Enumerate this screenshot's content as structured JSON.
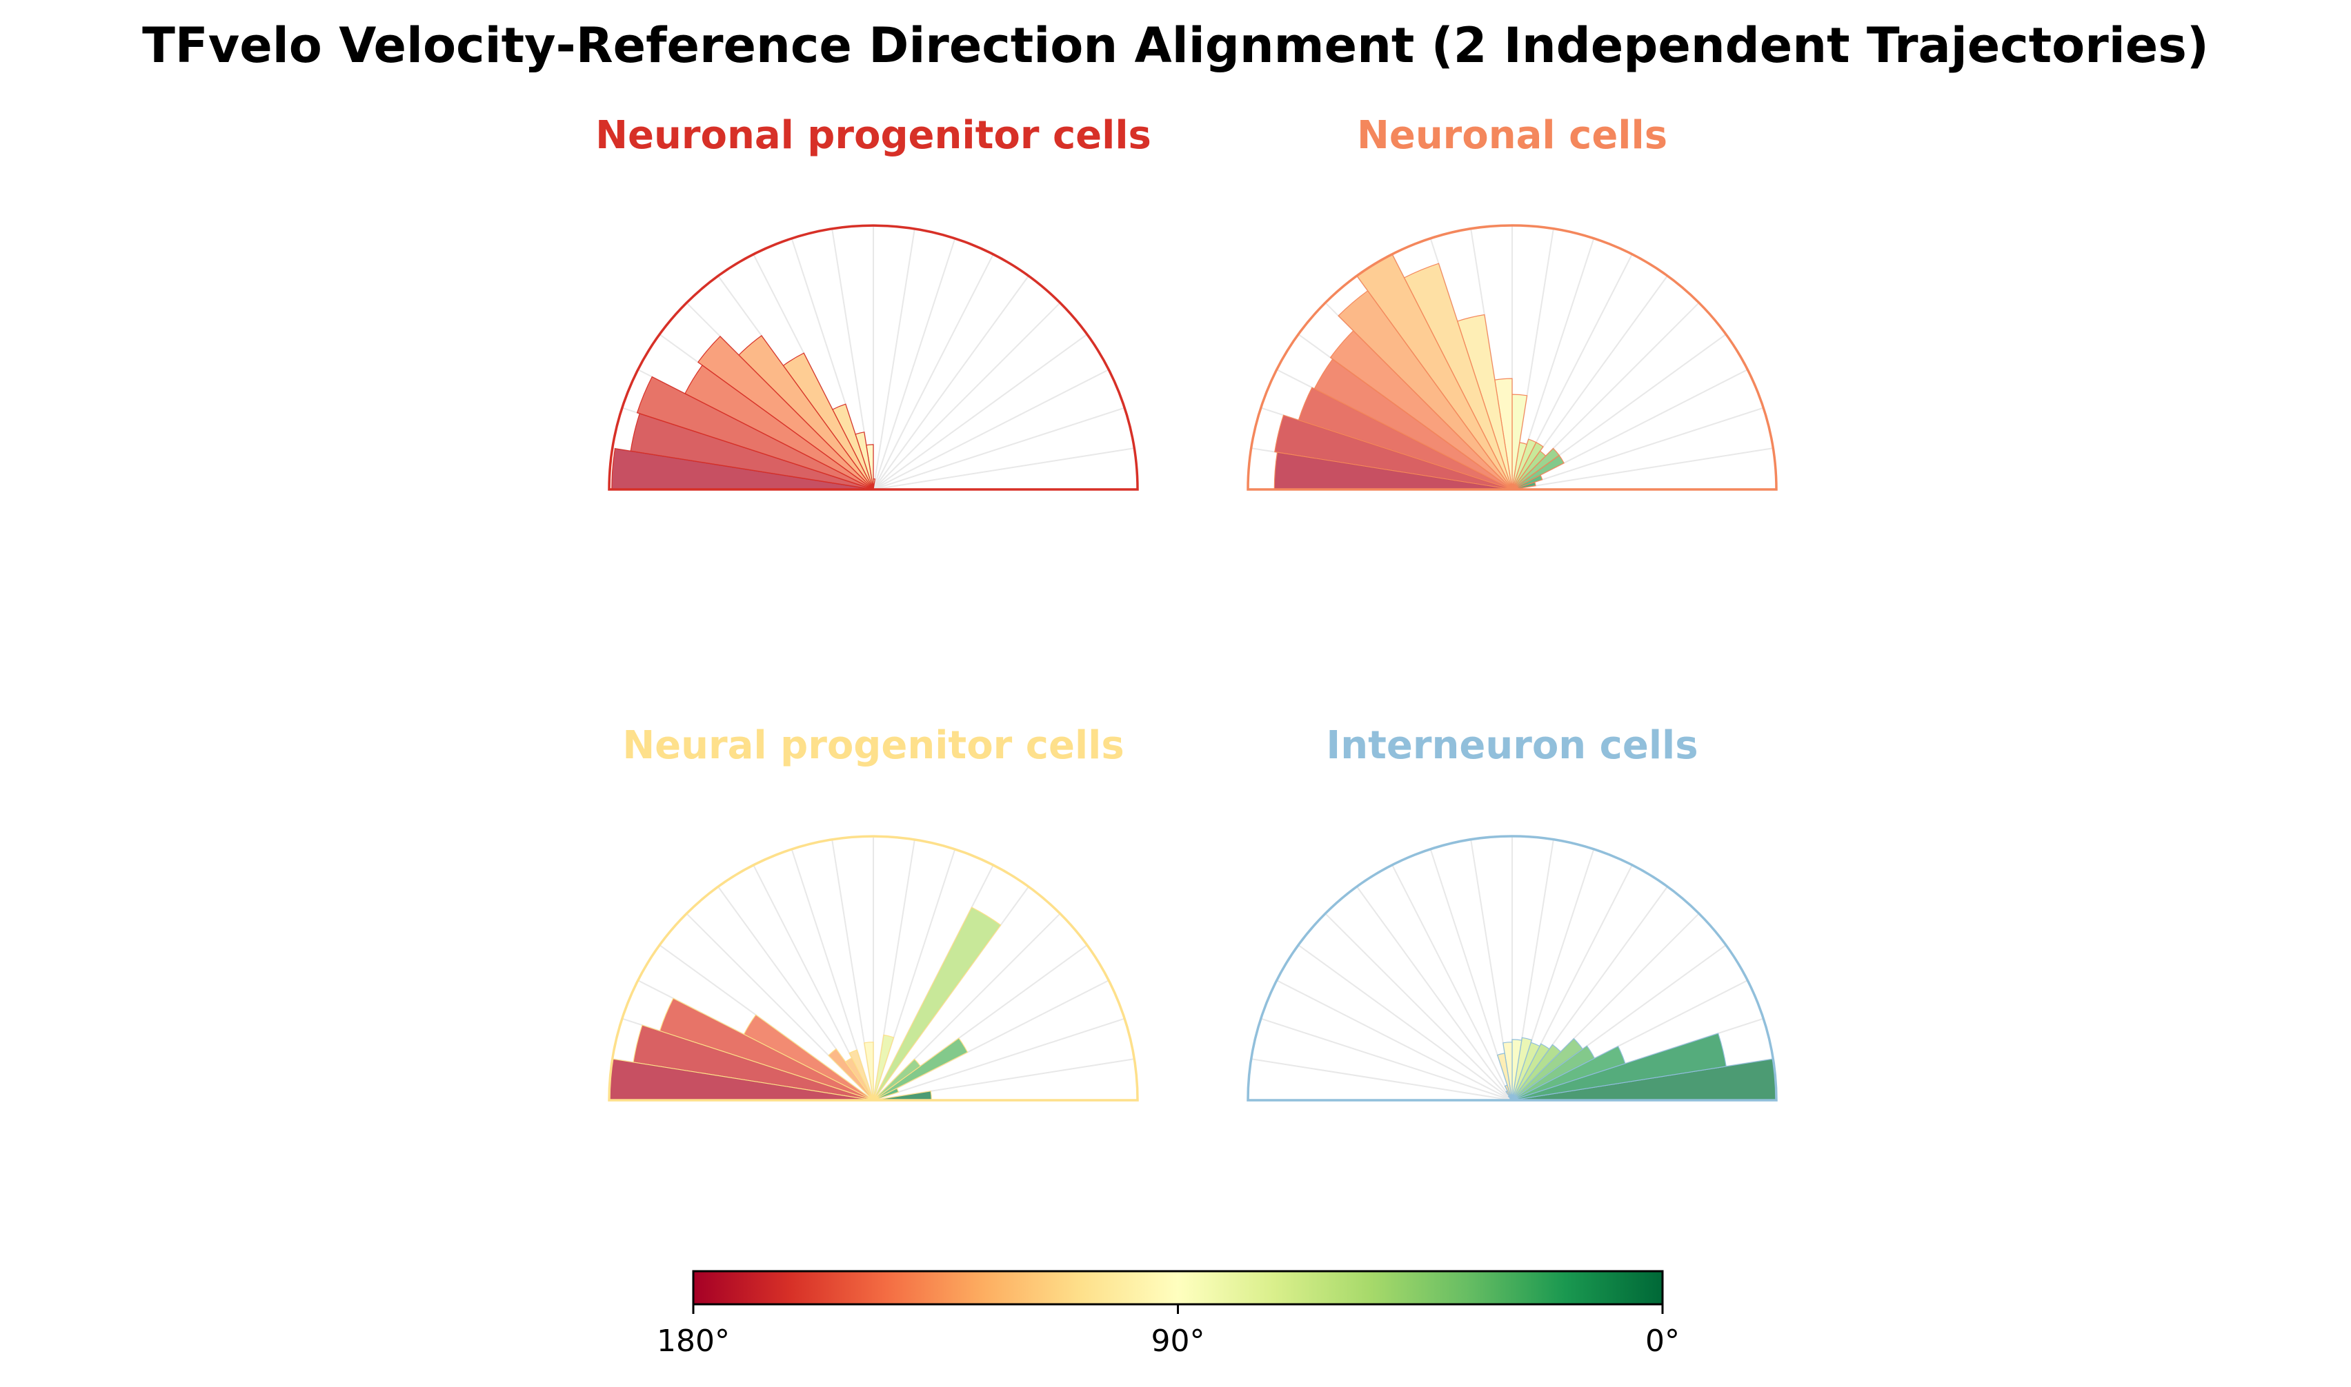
{
  "title": "TFvelo Velocity-Reference Direction Alignment (2 Independent Trajectories)",
  "chart_data": [
    {
      "type": "polar-histogram",
      "name": "Neuronal progenitor cells",
      "title": "Neuronal progenitor cells",
      "color": "#d73027",
      "angle_range_deg": [
        0,
        180
      ],
      "bin_width_deg": 9,
      "bin_centers_deg": [
        4.5,
        13.5,
        22.5,
        31.5,
        40.5,
        49.5,
        58.5,
        67.5,
        76.5,
        85.5,
        94.5,
        103.5,
        112.5,
        121.5,
        130.5,
        139.5,
        148.5,
        157.5,
        166.5,
        175.5
      ],
      "values": [
        0,
        0,
        0,
        0,
        0,
        0,
        0,
        0,
        0,
        0.04,
        0.17,
        0.22,
        0.34,
        0.58,
        0.72,
        0.82,
        0.8,
        0.94,
        0.93,
        0.99
      ]
    },
    {
      "type": "polar-histogram",
      "name": "Neuronal cells",
      "title": "Neuronal cells",
      "color": "#f4875c",
      "angle_range_deg": [
        0,
        180
      ],
      "bin_width_deg": 9,
      "bin_centers_deg": [
        4.5,
        13.5,
        22.5,
        31.5,
        40.5,
        49.5,
        58.5,
        67.5,
        76.5,
        85.5,
        94.5,
        103.5,
        112.5,
        121.5,
        130.5,
        139.5,
        148.5,
        157.5,
        166.5,
        175.5
      ],
      "values": [
        0.04,
        0.09,
        0.12,
        0.22,
        0.22,
        0.18,
        0.2,
        0.2,
        0.18,
        0.36,
        0.42,
        0.67,
        0.9,
        1.0,
        0.93,
        0.85,
        0.84,
        0.85,
        0.91,
        0.9
      ]
    },
    {
      "type": "polar-histogram",
      "name": "Neural progenitor cells",
      "title": "Neural progenitor cells",
      "color": "#fee08b",
      "angle_range_deg": [
        0,
        180
      ],
      "bin_width_deg": 9,
      "bin_centers_deg": [
        4.5,
        13.5,
        22.5,
        31.5,
        40.5,
        49.5,
        58.5,
        67.5,
        76.5,
        85.5,
        94.5,
        103.5,
        112.5,
        121.5,
        130.5,
        139.5,
        148.5,
        157.5,
        166.5,
        175.5
      ],
      "values": [
        0.22,
        0.0,
        0.1,
        0.4,
        0.22,
        0.0,
        0.82,
        0.0,
        0.25,
        0.0,
        0.22,
        0.0,
        0.2,
        0.18,
        0.24,
        0.0,
        0.55,
        0.85,
        0.92,
        1.0
      ]
    },
    {
      "type": "polar-histogram",
      "name": "Interneuron cells",
      "title": "Interneuron cells",
      "color": "#91bfdb",
      "angle_range_deg": [
        0,
        180
      ],
      "bin_width_deg": 9,
      "bin_centers_deg": [
        4.5,
        13.5,
        22.5,
        31.5,
        40.5,
        49.5,
        58.5,
        67.5,
        76.5,
        85.5,
        94.5,
        103.5,
        112.5,
        121.5,
        130.5,
        139.5,
        148.5,
        157.5,
        166.5,
        175.5
      ],
      "values": [
        1.0,
        0.82,
        0.45,
        0.35,
        0.33,
        0.26,
        0.24,
        0.23,
        0.24,
        0.23,
        0.22,
        0.18,
        0.06,
        0.04,
        0.02,
        0.01,
        0,
        0,
        0,
        0
      ]
    },
    {
      "type": "colorbar",
      "name": "angle-colorbar",
      "colormap": "RdYlGn",
      "range_deg": [
        180,
        0
      ],
      "tick_labels": [
        "180°",
        "90°",
        "0°"
      ]
    }
  ]
}
